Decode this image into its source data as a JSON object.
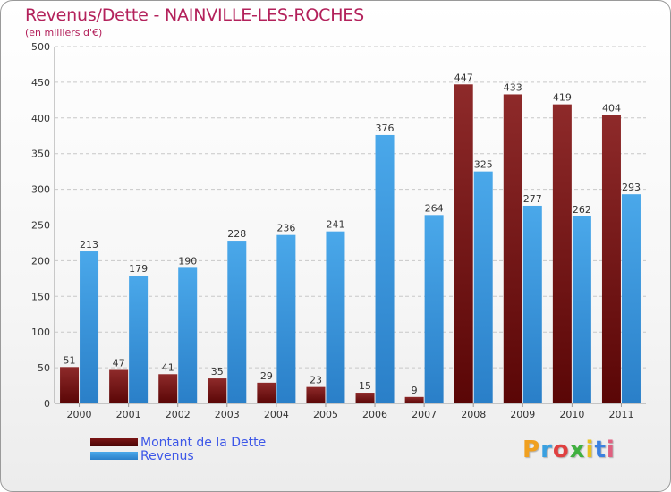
{
  "header": {
    "title": "Revenus/Dette - NAINVILLE-LES-ROCHES",
    "subtitle": "(en milliers d'€)"
  },
  "legend": {
    "items": [
      {
        "label": "Montant de la Dette",
        "color": "#8b1d1d"
      },
      {
        "label": "Revenus",
        "color": "#3a9be0"
      }
    ]
  },
  "logo": {
    "text": "Proxiti",
    "colors": [
      "#f0a020",
      "#3aa0e0",
      "#e04040",
      "#40b040",
      "#e8c020",
      "#3a80e0",
      "#e06080"
    ]
  },
  "chart_data": {
    "type": "bar",
    "categories": [
      "2000",
      "2001",
      "2002",
      "2003",
      "2004",
      "2005",
      "2006",
      "2007",
      "2008",
      "2009",
      "2010",
      "2011"
    ],
    "series": [
      {
        "name": "Montant de la Dette",
        "color": "#8b1d1d",
        "values": [
          51,
          47,
          41,
          35,
          29,
          23,
          15,
          9,
          447,
          433,
          419,
          404
        ]
      },
      {
        "name": "Revenus",
        "color": "#3a9be0",
        "values": [
          213,
          179,
          190,
          228,
          236,
          241,
          376,
          264,
          325,
          277,
          262,
          293
        ]
      }
    ],
    "ylim": [
      0,
      500
    ],
    "yticks": [
      0,
      50,
      100,
      150,
      200,
      250,
      300,
      350,
      400,
      450,
      500
    ],
    "grid": true,
    "xlabel": "",
    "ylabel": ""
  }
}
